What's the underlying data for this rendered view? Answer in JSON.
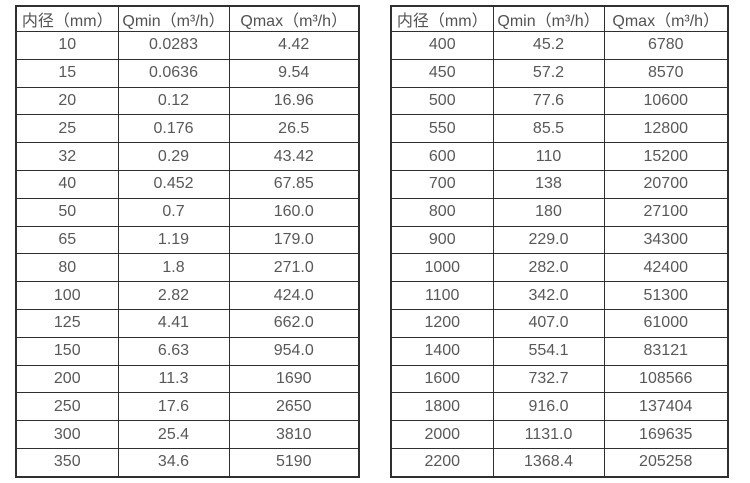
{
  "page": {
    "background_color": "#ffffff",
    "border_color": "#2f2f2f",
    "text_color": "#585858"
  },
  "chart_data": [
    {
      "type": "table",
      "name": "flow-spec-table-small-diameters",
      "columns": [
        "内径（mm）",
        "Qmin（m³/h）",
        "Qmax（m³/h）"
      ],
      "rows": [
        [
          "10",
          "0.0283",
          "4.42"
        ],
        [
          "15",
          "0.0636",
          "9.54"
        ],
        [
          "20",
          "0.12",
          "16.96"
        ],
        [
          "25",
          "0.176",
          "26.5"
        ],
        [
          "32",
          "0.29",
          "43.42"
        ],
        [
          "40",
          "0.452",
          "67.85"
        ],
        [
          "50",
          "0.7",
          "160.0"
        ],
        [
          "65",
          "1.19",
          "179.0"
        ],
        [
          "80",
          "1.8",
          "271.0"
        ],
        [
          "100",
          "2.82",
          "424.0"
        ],
        [
          "125",
          "4.41",
          "662.0"
        ],
        [
          "150",
          "6.63",
          "954.0"
        ],
        [
          "200",
          "11.3",
          "1690"
        ],
        [
          "250",
          "17.6",
          "2650"
        ],
        [
          "300",
          "25.4",
          "3810"
        ],
        [
          "350",
          "34.6",
          "5190"
        ]
      ]
    },
    {
      "type": "table",
      "name": "flow-spec-table-large-diameters",
      "columns": [
        "内径（mm）",
        "Qmin（m³/h）",
        "Qmax（m³/h）"
      ],
      "rows": [
        [
          "400",
          "45.2",
          "6780"
        ],
        [
          "450",
          "57.2",
          "8570"
        ],
        [
          "500",
          "77.6",
          "10600"
        ],
        [
          "550",
          "85.5",
          "12800"
        ],
        [
          "600",
          "110",
          "15200"
        ],
        [
          "700",
          "138",
          "20700"
        ],
        [
          "800",
          "180",
          "27100"
        ],
        [
          "900",
          "229.0",
          "34300"
        ],
        [
          "1000",
          "282.0",
          "42400"
        ],
        [
          "1100",
          "342.0",
          "51300"
        ],
        [
          "1200",
          "407.0",
          "61000"
        ],
        [
          "1400",
          "554.1",
          "83121"
        ],
        [
          "1600",
          "732.7",
          "108566"
        ],
        [
          "1800",
          "916.0",
          "137404"
        ],
        [
          "2000",
          "1131.0",
          "169635"
        ],
        [
          "2200",
          "1368.4",
          "205258"
        ]
      ]
    }
  ]
}
